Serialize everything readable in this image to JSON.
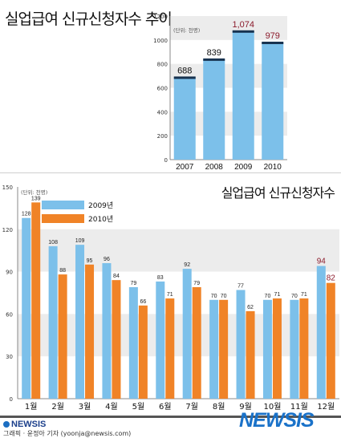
{
  "top_title": "실업급여 신규신청자수 추이",
  "bottom_title": "실업급여 신규신청자수",
  "logo_small": "NEWSIS",
  "logo_big": "NEWSIS",
  "credit": "그래픽 · 윤정아 기자 (yoonja@newsis.com)",
  "chart_data": [
    {
      "type": "bar",
      "title": "실업급여 신규신청자수 추이",
      "unit": "(단위: 천명)",
      "categories": [
        "2007",
        "2008",
        "2009",
        "2010"
      ],
      "values": [
        688,
        839,
        1074,
        979
      ],
      "data_labels": [
        "688",
        "839",
        "1,074",
        "979"
      ],
      "ylim": [
        0,
        1200
      ],
      "yticks": [
        0,
        200,
        400,
        600,
        800,
        1000,
        1200
      ],
      "colors": {
        "bar": "#7cc0ea",
        "bar_cap": "#17324f",
        "label_highlight": "#8b1a2b"
      },
      "grid": "alternating bands"
    },
    {
      "type": "bar",
      "title": "실업급여 신규신청자수",
      "unit": "(단위: 천명)",
      "categories": [
        "1월",
        "2월",
        "3월",
        "4월",
        "5월",
        "6월",
        "7월",
        "8월",
        "9월",
        "10월",
        "11월",
        "12월"
      ],
      "series": [
        {
          "name": "2009년",
          "values": [
            128,
            108,
            109,
            96,
            79,
            83,
            92,
            70,
            77,
            70,
            70,
            94
          ],
          "color": "#7cc0ea"
        },
        {
          "name": "2010년",
          "values": [
            139,
            88,
            95,
            84,
            66,
            71,
            79,
            70,
            62,
            71,
            71,
            82
          ],
          "color": "#f08327"
        }
      ],
      "ylim": [
        0,
        150
      ],
      "yticks": [
        0,
        30,
        60,
        90,
        120,
        150
      ],
      "legend": "top-left",
      "colors": {
        "label_highlight": "#8b1a2b"
      },
      "grid": "alternating bands"
    }
  ]
}
